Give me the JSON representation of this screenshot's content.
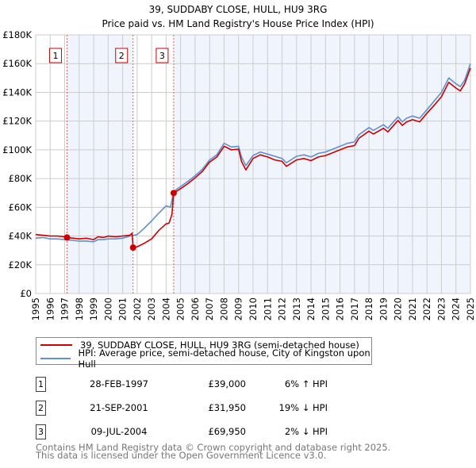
{
  "chart_data": {
    "type": "line",
    "title": "39, SUDDABY CLOSE, HULL, HU9 3RG",
    "subtitle": "Price paid vs. HM Land Registry's House Price Index (HPI)",
    "xlim": [
      1995,
      2025
    ],
    "ylim": [
      0,
      180000
    ],
    "yticks": [
      0,
      20000,
      40000,
      60000,
      80000,
      100000,
      120000,
      140000,
      160000,
      180000
    ],
    "ytick_labels": [
      "£0",
      "£20K",
      "£40K",
      "£60K",
      "£80K",
      "£100K",
      "£120K",
      "£140K",
      "£160K",
      "£180K"
    ],
    "xtick_labels": [
      "1995",
      "1996",
      "1997",
      "1998",
      "1999",
      "2000",
      "2001",
      "2002",
      "2003",
      "2004",
      "2005",
      "2006",
      "2007",
      "2008",
      "2009",
      "2010",
      "2011",
      "2012",
      "2013",
      "2014",
      "2015",
      "2016",
      "2017",
      "2018",
      "2019",
      "2020",
      "2021",
      "2022",
      "2023",
      "2024",
      "2025"
    ],
    "grid": true,
    "legend_placement": "below",
    "colors": {
      "property": "#cc0000",
      "hpi": "#6090d0",
      "shade": "#f0f4fc"
    },
    "series": [
      {
        "name": "39, SUDDABY CLOSE, HULL, HU9 3RG (semi-detached house)",
        "x": [
          1995,
          1995.5,
          1996,
          1996.5,
          1997,
          1997.16,
          1997.6,
          1998,
          1998.5,
          1999,
          1999.3,
          1999.7,
          2000,
          2000.5,
          2001,
          2001.5,
          2001.65,
          2001.72,
          2002,
          2002.5,
          2003,
          2003.5,
          2004,
          2004.2,
          2004.4,
          2004.52,
          2005,
          2005.5,
          2006,
          2006.5,
          2007,
          2007.5,
          2008,
          2008.5,
          2009,
          2009.2,
          2009.5,
          2010,
          2010.5,
          2011,
          2011.5,
          2012,
          2012.3,
          2013,
          2013.5,
          2014,
          2014.5,
          2015,
          2015.5,
          2016,
          2016.5,
          2017,
          2017.3,
          2018,
          2018.3,
          2019,
          2019.3,
          2020,
          2020.3,
          2020.6,
          2021,
          2021.5,
          2022,
          2022.5,
          2023,
          2023.5,
          2024,
          2024.3,
          2024.6,
          2025
        ],
        "y": [
          41000,
          40500,
          40000,
          40000,
          39500,
          39000,
          38500,
          38000,
          38500,
          37500,
          39500,
          39000,
          40000,
          39500,
          40000,
          40500,
          42000,
          31950,
          32500,
          35000,
          38000,
          44000,
          48500,
          49000,
          55000,
          69950,
          73000,
          76500,
          80500,
          85000,
          91500,
          95000,
          102500,
          100000,
          100500,
          92000,
          86000,
          94000,
          96500,
          95000,
          93000,
          92000,
          88500,
          93000,
          94000,
          92500,
          95000,
          96000,
          98000,
          100000,
          102000,
          103000,
          108000,
          113000,
          111000,
          115000,
          112500,
          120500,
          117000,
          119500,
          121000,
          119500,
          125500,
          131000,
          137000,
          147000,
          143000,
          141000,
          146000,
          157000
        ]
      },
      {
        "name": "HPI: Average price, semi-detached house, City of Kingston upon Hull",
        "x": [
          1995,
          1995.5,
          1996,
          1996.5,
          1997,
          1997.5,
          1998,
          1998.5,
          1999,
          1999.3,
          1999.7,
          2000,
          2000.5,
          2001,
          2001.5,
          2002,
          2002.5,
          2003,
          2003.5,
          2004,
          2004.3,
          2004.52,
          2005,
          2005.5,
          2006,
          2006.5,
          2007,
          2007.5,
          2008,
          2008.5,
          2009,
          2009.2,
          2009.5,
          2010,
          2010.5,
          2011,
          2011.5,
          2012,
          2012.3,
          2013,
          2013.5,
          2014,
          2014.5,
          2015,
          2015.5,
          2016,
          2016.5,
          2017,
          2017.3,
          2018,
          2018.3,
          2019,
          2019.3,
          2020,
          2020.3,
          2020.6,
          2021,
          2021.5,
          2022,
          2022.5,
          2023,
          2023.5,
          2024,
          2024.3,
          2024.6,
          2025
        ],
        "y": [
          38500,
          39000,
          38000,
          38000,
          37500,
          37000,
          36500,
          36500,
          36000,
          37500,
          37500,
          38000,
          38000,
          38500,
          40000,
          41000,
          45500,
          50500,
          56000,
          61000,
          60000,
          71000,
          74500,
          78000,
          82000,
          86500,
          93000,
          96500,
          104500,
          102000,
          102500,
          95000,
          89000,
          96000,
          98500,
          97000,
          95500,
          94000,
          91000,
          95500,
          96500,
          95000,
          97500,
          98500,
          100500,
          102500,
          104500,
          105500,
          110500,
          115500,
          113500,
          117500,
          115000,
          123000,
          119500,
          122000,
          123500,
          122000,
          128000,
          134000,
          140000,
          150000,
          146000,
          144000,
          148500,
          160000
        ]
      }
    ],
    "sales": [
      {
        "label": "1",
        "x": 1997.16,
        "y": 39000
      },
      {
        "label": "2",
        "x": 2001.72,
        "y": 31950
      },
      {
        "label": "3",
        "x": 2004.52,
        "y": 69950
      }
    ]
  },
  "legend": {
    "property": "39, SUDDABY CLOSE, HULL, HU9 3RG (semi-detached house)",
    "hpi": "HPI: Average price, semi-detached house, City of Kingston upon Hull"
  },
  "transactions": [
    {
      "num": "1",
      "date": "28-FEB-1997",
      "price": "£39,000",
      "hpi": "6% ↑ HPI"
    },
    {
      "num": "2",
      "date": "21-SEP-2001",
      "price": "£31,950",
      "hpi": "19% ↓ HPI"
    },
    {
      "num": "3",
      "date": "09-JUL-2004",
      "price": "£69,950",
      "hpi": "2% ↓ HPI"
    }
  ],
  "footer": {
    "line1": "Contains HM Land Registry data © Crown copyright and database right 2025.",
    "line2": "This data is licensed under the Open Government Licence v3.0."
  }
}
